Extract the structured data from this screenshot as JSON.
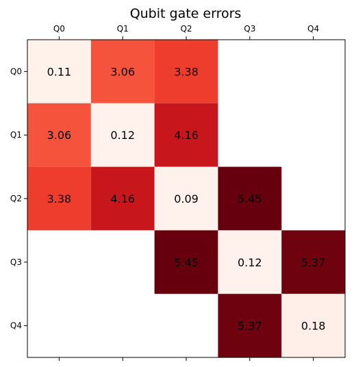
{
  "chart_data": {
    "type": "heatmap",
    "title": "Qubit gate errors",
    "x_labels": [
      "Q0",
      "Q1",
      "Q2",
      "Q3",
      "Q4"
    ],
    "y_labels": [
      "Q0",
      "Q1",
      "Q2",
      "Q3",
      "Q4"
    ],
    "x_tick_position": "top",
    "colormap": "Reds",
    "color_range": [
      0,
      5.45
    ],
    "cells": [
      {
        "row": 0,
        "col": 0,
        "value": 0.11,
        "label": "0.11"
      },
      {
        "row": 0,
        "col": 1,
        "value": 3.06,
        "label": "3.06"
      },
      {
        "row": 0,
        "col": 2,
        "value": 3.38,
        "label": "3.38"
      },
      {
        "row": 1,
        "col": 0,
        "value": 3.06,
        "label": "3.06"
      },
      {
        "row": 1,
        "col": 1,
        "value": 0.12,
        "label": "0.12"
      },
      {
        "row": 1,
        "col": 2,
        "value": 4.16,
        "label": "4.16"
      },
      {
        "row": 2,
        "col": 0,
        "value": 3.38,
        "label": "3.38"
      },
      {
        "row": 2,
        "col": 1,
        "value": 4.16,
        "label": "4.16"
      },
      {
        "row": 2,
        "col": 2,
        "value": 0.09,
        "label": "0.09"
      },
      {
        "row": 2,
        "col": 3,
        "value": 5.45,
        "label": "5.45"
      },
      {
        "row": 3,
        "col": 2,
        "value": 5.45,
        "label": "5.45"
      },
      {
        "row": 3,
        "col": 3,
        "value": 0.12,
        "label": "0.12"
      },
      {
        "row": 3,
        "col": 4,
        "value": 5.37,
        "label": "5.37"
      },
      {
        "row": 4,
        "col": 3,
        "value": 5.37,
        "label": "5.37"
      },
      {
        "row": 4,
        "col": 4,
        "value": 0.18,
        "label": "0.18"
      }
    ]
  }
}
